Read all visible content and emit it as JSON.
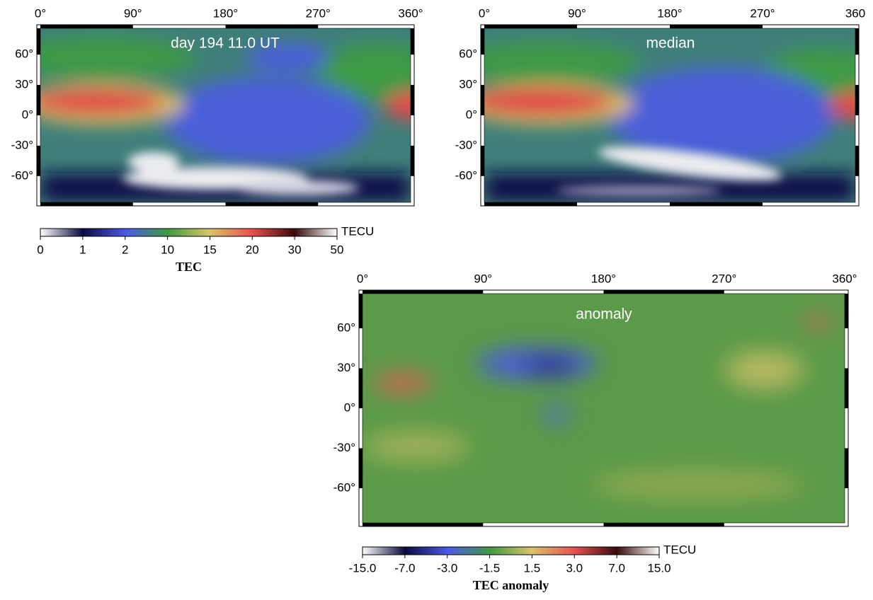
{
  "panels": [
    {
      "label": "day 194 11.0 UT",
      "xticks": [
        "0°",
        "90°",
        "180°",
        "270°",
        "360°"
      ],
      "yticks": [
        "60°",
        "30°",
        "0°",
        "-30°",
        "-60°"
      ]
    },
    {
      "label": "median",
      "xticks": [
        "0°",
        "90°",
        "180°",
        "270°",
        "360"
      ],
      "yticks": [
        "60°",
        "30°",
        "0°",
        "-30°",
        "-60°"
      ]
    },
    {
      "label": "anomaly",
      "xticks": [
        "0°",
        "90°",
        "180°",
        "270°",
        "360°"
      ],
      "yticks": [
        "60°",
        "30°",
        "0°",
        "-30°",
        "-60°"
      ]
    }
  ],
  "colorbars": [
    {
      "unit": "TECU",
      "title": "TEC",
      "ticks": [
        "0",
        "1",
        "2",
        "10",
        "15",
        "20",
        "30",
        "50"
      ]
    },
    {
      "unit": "TECU",
      "title": "TEC anomaly",
      "ticks": [
        "-15.0",
        "-7.0",
        "-3.0",
        "-1.5",
        "1.5",
        "3.0",
        "7.0",
        "15.0"
      ]
    }
  ]
}
